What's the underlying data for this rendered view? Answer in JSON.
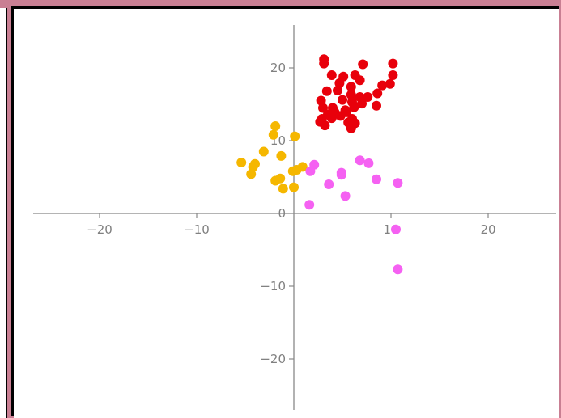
{
  "chart_data": {
    "type": "scatter",
    "xlim": [
      -27,
      27
    ],
    "ylim": [
      -27,
      27
    ],
    "x_ticks": [
      -20,
      -10,
      0,
      10,
      20
    ],
    "y_ticks": [
      -20,
      -10,
      0,
      10,
      20
    ],
    "x_tick_labels": [
      "−20",
      "−10",
      "",
      "10",
      "20"
    ],
    "y_tick_labels": [
      "−20",
      "−10",
      "0",
      "10",
      "20"
    ],
    "axis_color": "#888888",
    "grid": false,
    "series": [
      {
        "color": "#e8000b",
        "points": [
          [
            3.1,
            21.2
          ],
          [
            3.1,
            20.6
          ],
          [
            7.1,
            20.5
          ],
          [
            10.2,
            20.6
          ],
          [
            10.2,
            19.0
          ],
          [
            6.3,
            19.0
          ],
          [
            6.8,
            18.3
          ],
          [
            3.9,
            19.0
          ],
          [
            5.1,
            18.8
          ],
          [
            9.9,
            17.8
          ],
          [
            9.1,
            17.6
          ],
          [
            4.7,
            17.9
          ],
          [
            5.9,
            17.4
          ],
          [
            4.5,
            16.9
          ],
          [
            3.4,
            16.8
          ],
          [
            5.9,
            16.3
          ],
          [
            6.8,
            16.0
          ],
          [
            7.6,
            16.0
          ],
          [
            8.6,
            16.5
          ],
          [
            2.8,
            15.5
          ],
          [
            5.0,
            15.6
          ],
          [
            6.0,
            15.3
          ],
          [
            7.0,
            15.1
          ],
          [
            8.5,
            14.8
          ],
          [
            4.0,
            14.5
          ],
          [
            5.3,
            14.2
          ],
          [
            6.2,
            14.6
          ],
          [
            3.0,
            14.5
          ],
          [
            3.5,
            13.6
          ],
          [
            4.2,
            13.9
          ],
          [
            5.4,
            13.9
          ],
          [
            4.8,
            13.4
          ],
          [
            6.0,
            13.0
          ],
          [
            3.9,
            13.1
          ],
          [
            2.9,
            13.0
          ],
          [
            2.7,
            12.6
          ],
          [
            3.2,
            12.1
          ],
          [
            5.6,
            12.5
          ],
          [
            6.3,
            12.4
          ],
          [
            5.9,
            11.7
          ]
        ]
      },
      {
        "color": "#f5b700",
        "points": [
          [
            -1.9,
            12.0
          ],
          [
            -2.1,
            10.8
          ],
          [
            0.1,
            10.6
          ],
          [
            -3.1,
            8.5
          ],
          [
            -1.3,
            7.9
          ],
          [
            -5.4,
            7.0
          ],
          [
            -4.2,
            6.4
          ],
          [
            -4.0,
            6.8
          ],
          [
            -4.4,
            5.4
          ],
          [
            0.9,
            6.4
          ],
          [
            0.3,
            6.0
          ],
          [
            -0.1,
            5.8
          ],
          [
            -1.9,
            4.5
          ],
          [
            -1.4,
            4.8
          ],
          [
            -1.1,
            3.4
          ],
          [
            0.0,
            3.6
          ]
        ]
      },
      {
        "color": "#f561f2",
        "points": [
          [
            6.8,
            7.3
          ],
          [
            7.7,
            6.9
          ],
          [
            2.1,
            6.7
          ],
          [
            1.7,
            5.8
          ],
          [
            4.9,
            5.6
          ],
          [
            4.9,
            5.3
          ],
          [
            8.5,
            4.7
          ],
          [
            10.7,
            4.2
          ],
          [
            3.6,
            4.0
          ],
          [
            5.3,
            2.4
          ],
          [
            1.6,
            1.2
          ],
          [
            10.5,
            -2.2
          ],
          [
            10.7,
            -7.7
          ]
        ]
      }
    ]
  }
}
